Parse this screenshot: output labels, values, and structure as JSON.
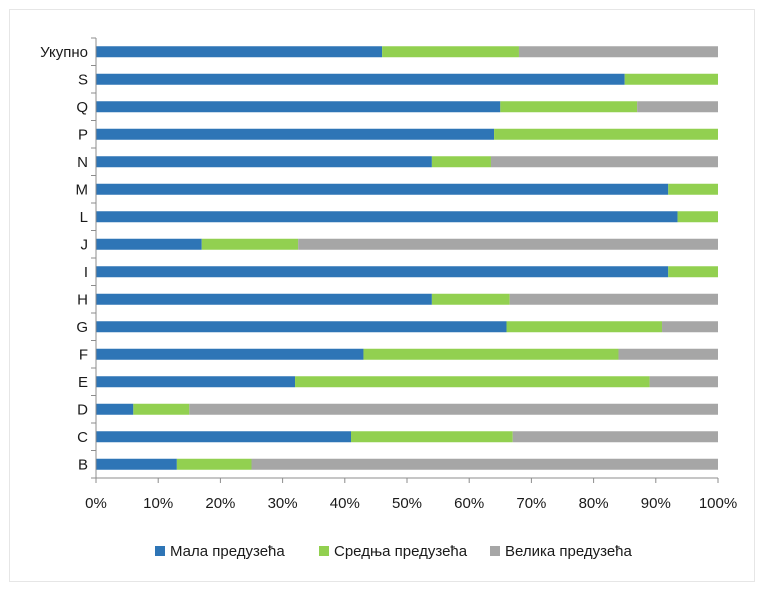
{
  "chart_data": {
    "type": "bar",
    "orientation": "horizontal",
    "stacked": true,
    "percent_stacked": true,
    "categories": [
      "Укупно",
      "S",
      "Q",
      "P",
      "N",
      "M",
      "L",
      "J",
      "I",
      "H",
      "G",
      "F",
      "E",
      "D",
      "C",
      "B"
    ],
    "series": [
      {
        "name": "Мала предузећа",
        "color": "#2e75b6",
        "values": [
          46,
          85,
          65,
          64,
          54,
          92,
          93.5,
          17,
          92,
          54,
          66,
          43,
          32,
          6,
          41,
          13
        ]
      },
      {
        "name": "Средња предузећа",
        "color": "#92d050",
        "values": [
          22,
          15,
          22,
          36,
          9.5,
          8,
          6.5,
          15.5,
          8,
          12.5,
          25,
          41,
          57,
          9,
          26,
          12
        ]
      },
      {
        "name": "Велика предузећа",
        "color": "#a6a6a6",
        "values": [
          32,
          0,
          13,
          0,
          36.5,
          0,
          0,
          67.5,
          0,
          33.5,
          9,
          16,
          11,
          85,
          33,
          75
        ]
      }
    ],
    "x_ticks": [
      "0%",
      "10%",
      "20%",
      "30%",
      "40%",
      "50%",
      "60%",
      "70%",
      "80%",
      "90%",
      "100%"
    ],
    "xlim": [
      0,
      100
    ],
    "grid": false,
    "legend_position": "bottom"
  }
}
